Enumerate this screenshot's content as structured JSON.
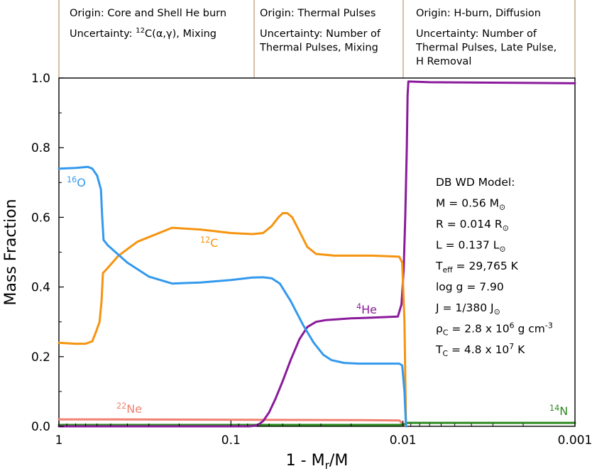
{
  "chart_data": {
    "type": "line",
    "xlabel": "1 - M",
    "xlabel_sub": "r",
    "xlabel_tail": "/M",
    "ylabel": "Mass Fraction",
    "xscale": "log",
    "xlim": [
      1,
      0.001
    ],
    "ylim": [
      0,
      1.0
    ],
    "x_ticks": [
      1,
      0.1,
      0.01,
      0.001
    ],
    "x_tick_labels": [
      "1",
      "0.1",
      "0.01",
      "0.001"
    ],
    "y_ticks": [
      0,
      0.2,
      0.4,
      0.6,
      0.8,
      1.0
    ],
    "y_tick_labels": [
      "0.0",
      "0.2",
      "0.4",
      "0.6",
      "0.8",
      "1.0"
    ],
    "series": [
      {
        "name": "16O",
        "mass": "16",
        "symbol": "O",
        "color": "#3399ee",
        "points": [
          [
            1,
            0.74
          ],
          [
            0.8,
            0.742
          ],
          [
            0.68,
            0.745
          ],
          [
            0.64,
            0.74
          ],
          [
            0.6,
            0.72
          ],
          [
            0.57,
            0.68
          ],
          [
            0.56,
            0.6
          ],
          [
            0.55,
            0.535
          ],
          [
            0.52,
            0.52
          ],
          [
            0.4,
            0.47
          ],
          [
            0.3,
            0.43
          ],
          [
            0.22,
            0.41
          ],
          [
            0.15,
            0.413
          ],
          [
            0.1,
            0.42
          ],
          [
            0.075,
            0.427
          ],
          [
            0.065,
            0.428
          ],
          [
            0.058,
            0.425
          ],
          [
            0.052,
            0.41
          ],
          [
            0.045,
            0.36
          ],
          [
            0.038,
            0.29
          ],
          [
            0.033,
            0.24
          ],
          [
            0.029,
            0.205
          ],
          [
            0.026,
            0.19
          ],
          [
            0.022,
            0.182
          ],
          [
            0.018,
            0.18
          ],
          [
            0.013,
            0.18
          ],
          [
            0.0105,
            0.18
          ],
          [
            0.0101,
            0.175
          ],
          [
            0.0098,
            0.1
          ],
          [
            0.0096,
            0.0
          ]
        ]
      },
      {
        "name": "12C",
        "mass": "12",
        "symbol": "C",
        "color": "#f5940f",
        "points": [
          [
            1,
            0.24
          ],
          [
            0.8,
            0.237
          ],
          [
            0.7,
            0.237
          ],
          [
            0.64,
            0.244
          ],
          [
            0.61,
            0.27
          ],
          [
            0.58,
            0.3
          ],
          [
            0.565,
            0.36
          ],
          [
            0.555,
            0.44
          ],
          [
            0.53,
            0.45
          ],
          [
            0.45,
            0.49
          ],
          [
            0.35,
            0.53
          ],
          [
            0.22,
            0.57
          ],
          [
            0.15,
            0.565
          ],
          [
            0.1,
            0.555
          ],
          [
            0.075,
            0.552
          ],
          [
            0.065,
            0.555
          ],
          [
            0.058,
            0.575
          ],
          [
            0.053,
            0.6
          ],
          [
            0.05,
            0.612
          ],
          [
            0.047,
            0.612
          ],
          [
            0.044,
            0.6
          ],
          [
            0.04,
            0.56
          ],
          [
            0.036,
            0.515
          ],
          [
            0.032,
            0.495
          ],
          [
            0.025,
            0.49
          ],
          [
            0.015,
            0.49
          ],
          [
            0.0105,
            0.487
          ],
          [
            0.0101,
            0.47
          ],
          [
            0.0098,
            0.3
          ],
          [
            0.0096,
            0.0
          ]
        ]
      },
      {
        "name": "4He",
        "mass": "4",
        "symbol": "He",
        "color": "#8a1a9b",
        "points": [
          [
            1,
            0.0
          ],
          [
            0.078,
            0.0
          ],
          [
            0.07,
            0.003
          ],
          [
            0.065,
            0.015
          ],
          [
            0.06,
            0.04
          ],
          [
            0.055,
            0.08
          ],
          [
            0.05,
            0.13
          ],
          [
            0.045,
            0.19
          ],
          [
            0.04,
            0.25
          ],
          [
            0.036,
            0.285
          ],
          [
            0.032,
            0.3
          ],
          [
            0.028,
            0.305
          ],
          [
            0.02,
            0.31
          ],
          [
            0.015,
            0.312
          ],
          [
            0.0107,
            0.315
          ],
          [
            0.0102,
            0.35
          ],
          [
            0.0099,
            0.45
          ],
          [
            0.0097,
            0.6
          ],
          [
            0.0095,
            0.8
          ],
          [
            0.0094,
            0.95
          ],
          [
            0.0093,
            0.99
          ],
          [
            0.007,
            0.988
          ],
          [
            0.001,
            0.985
          ]
        ]
      },
      {
        "name": "22Ne",
        "mass": "22",
        "symbol": "Ne",
        "color": "#f08070",
        "points": [
          [
            1,
            0.02
          ],
          [
            0.5,
            0.02
          ],
          [
            0.1,
            0.019
          ],
          [
            0.02,
            0.018
          ],
          [
            0.0105,
            0.017
          ],
          [
            0.0096,
            0.0
          ]
        ]
      },
      {
        "name": "14N",
        "mass": "14",
        "symbol": "N",
        "color": "#2e8b20",
        "points": [
          [
            1,
            0.004
          ],
          [
            0.3,
            0.004
          ],
          [
            0.1,
            0.004
          ],
          [
            0.0105,
            0.004
          ],
          [
            0.0098,
            0.006
          ],
          [
            0.0094,
            0.01
          ],
          [
            0.001,
            0.01
          ]
        ]
      }
    ],
    "annotations": [
      {
        "lines": [
          [
            {
              "t": "Origin: Core and Shell He burn"
            }
          ],
          [
            {
              "t": "Uncertainty: "
            },
            {
              "t": "12",
              "sup": true
            },
            {
              "t": "C(α,γ), Mixing"
            }
          ]
        ]
      },
      {
        "lines": [
          [
            {
              "t": "Origin: Thermal Pulses"
            }
          ],
          [
            {
              "t": "Uncertainty: Number of"
            }
          ],
          [
            {
              "t": "Thermal Pulses, Mixing"
            }
          ]
        ]
      },
      {
        "lines": [
          [
            {
              "t": "Origin: H-burn, Diffusion"
            }
          ],
          [
            {
              "t": "Uncertainty: Number of"
            }
          ],
          [
            {
              "t": "Thermal Pulses, Late Pulse,"
            }
          ],
          [
            {
              "t": "H Removal"
            }
          ]
        ]
      }
    ],
    "model_box": [
      [
        {
          "t": "DB WD Model:"
        }
      ],
      [
        {
          "t": "M = 0.56 M"
        },
        {
          "t": "⊙",
          "sub": true
        }
      ],
      [
        {
          "t": "R = 0.014 R"
        },
        {
          "t": "⊙",
          "sub": true
        }
      ],
      [
        {
          "t": "L = 0.137 L"
        },
        {
          "t": "⊙",
          "sub": true
        }
      ],
      [
        {
          "t": "T"
        },
        {
          "t": "eff",
          "sub": true
        },
        {
          "t": " = 29,765 K"
        }
      ],
      [
        {
          "t": "log g = 7.90"
        }
      ],
      [
        {
          "t": "J = 1/380 J"
        },
        {
          "t": "⊙",
          "sub": true
        }
      ],
      [
        {
          "t": "ρ"
        },
        {
          "t": "C",
          "sub": true
        },
        {
          "t": " = 2.8 x 10"
        },
        {
          "t": "6",
          "sup": true
        },
        {
          "t": " g cm"
        },
        {
          "t": "-3",
          "sup": true
        }
      ],
      [
        {
          "t": "T"
        },
        {
          "t": "C",
          "sub": true
        },
        {
          "t": " = 4.8 x 10"
        },
        {
          "t": "7",
          "sup": true
        },
        {
          "t": " K"
        }
      ]
    ],
    "frame_color": "#b8956a"
  }
}
